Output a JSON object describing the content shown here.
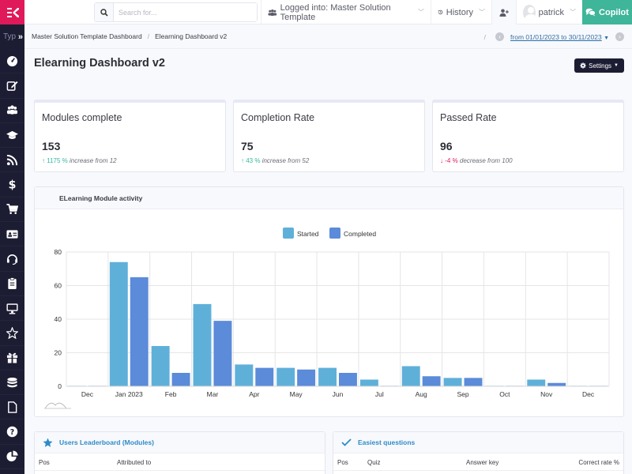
{
  "sidebar": {
    "search_stub": "Typ",
    "expand_glyph": "»",
    "icons": [
      "tachometer-icon",
      "edit-icon",
      "users-icon",
      "graduation-cap-icon",
      "rss-icon",
      "dollar-icon",
      "cart-icon",
      "id-card-icon",
      "headset-icon",
      "clipboard-icon",
      "desktop-icon",
      "star-icon",
      "gift-icon",
      "database-icon",
      "file-icon",
      "question-icon",
      "pie-chart-icon"
    ]
  },
  "topbar": {
    "search_placeholder": "Search for...",
    "logged_into": "Logged into: Master Solution Template",
    "history": "History",
    "user": "patrick",
    "copilot": "Copilot"
  },
  "breadcrumb": {
    "items": [
      "Master Solution Template Dashboard",
      "Elearning Dashboard v2"
    ],
    "separator": "/",
    "date_range": "from 01/01/2023 to 30/11/2023"
  },
  "page": {
    "title": "Elearning Dashboard v2",
    "settings": "Settings"
  },
  "kpis": [
    {
      "title": "Modules complete",
      "value": "153",
      "arrow": "↑",
      "delta": "1175 %",
      "desc": "increase from 12",
      "trend": "up"
    },
    {
      "title": "Completion Rate",
      "value": "75",
      "arrow": "↑",
      "delta": "43 %",
      "desc": "increase from 52",
      "trend": "up"
    },
    {
      "title": "Passed Rate",
      "value": "96",
      "arrow": "↓",
      "delta": "-4 %",
      "desc": "decrease from 100",
      "trend": "down"
    }
  ],
  "chart_panel": {
    "title": "ELearning Module activity"
  },
  "chart_data": {
    "type": "bar",
    "title": "ELearning Module activity",
    "xlabel": "",
    "ylabel": "",
    "categories": [
      "Dec",
      "Jan 2023",
      "Feb",
      "Mar",
      "Apr",
      "May",
      "Jun",
      "Jul",
      "Aug",
      "Sep",
      "Oct",
      "Nov",
      "Dec"
    ],
    "series": [
      {
        "name": "Started",
        "color": "#5fb0d9",
        "values": [
          0,
          74,
          24,
          49,
          13,
          11,
          11,
          4,
          12,
          5,
          0,
          4,
          0
        ]
      },
      {
        "name": "Completed",
        "color": "#5b8bd9",
        "values": [
          0,
          65,
          8,
          39,
          11,
          10,
          8,
          0,
          6,
          5,
          0,
          2,
          0
        ]
      }
    ],
    "ylim": [
      0,
      80
    ],
    "yticks": [
      0,
      20,
      40,
      60,
      80
    ],
    "grid": true,
    "legend": "top-center"
  },
  "tables": [
    {
      "title": "Users Leaderboard (Modules)",
      "icon": "star-icon",
      "columns": [
        "Pos",
        "Attributed to"
      ]
    },
    {
      "title": "Easiest questions",
      "icon": "check-icon",
      "columns": [
        "Pos",
        "Quiz",
        "Answer key",
        "Correct rate %"
      ]
    }
  ]
}
